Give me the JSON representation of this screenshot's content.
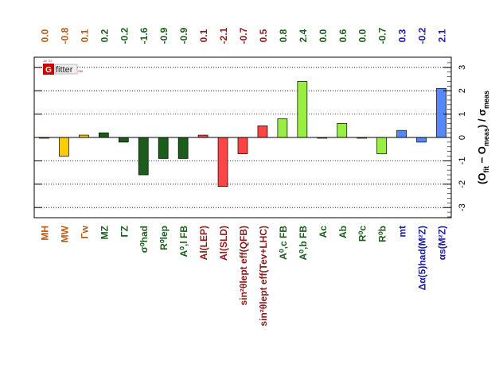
{
  "chart_data": {
    "type": "bar",
    "title": "",
    "xlabel": "",
    "ylabel": "(O_fit − O_meas) / σ_meas",
    "ylim": [
      -3.4,
      3.4
    ],
    "yticks": [
      -3,
      -2,
      -1,
      0,
      1,
      2,
      3
    ],
    "grid": true,
    "logo": {
      "letter": "G",
      "text": "fitter",
      "tag": "SM",
      "date": "Jul '22"
    },
    "categories": [
      "MH",
      "MW",
      "Γw",
      "MZ",
      "ΓZ",
      "σ⁰had",
      "R⁰lep",
      "A⁰,l FB",
      "Al(LEP)",
      "Al(SLD)",
      "sin²θlept eff(QFB)",
      "sin²θlept eff(Tev+LHC)",
      "A⁰,c FB",
      "A⁰,b FB",
      "Ac",
      "Ab",
      "R⁰c",
      "R⁰b",
      "mt",
      "Δα(5)had(M²Z)",
      "αs(M²Z)"
    ],
    "values": [
      0.0,
      -0.8,
      0.1,
      0.2,
      -0.2,
      -1.6,
      -0.9,
      -0.9,
      0.1,
      -2.1,
      -0.7,
      0.5,
      0.8,
      2.4,
      0.0,
      0.6,
      0.0,
      -0.7,
      0.3,
      -0.2,
      2.1
    ],
    "value_labels": [
      "0.0",
      "-0.8",
      "0.1",
      "0.2",
      "-0.2",
      "-1.6",
      "-0.9",
      "-0.9",
      "0.1",
      "-2.1",
      "-0.7",
      "0.5",
      "0.8",
      "2.4",
      "0.0",
      "0.6",
      "0.0",
      "-0.7",
      "0.3",
      "-0.2",
      "2.1"
    ],
    "bar_colors": [
      "#ffcc00",
      "#ffcc00",
      "#ffcc00",
      "#1b5e1b",
      "#1b5e1b",
      "#1b5e1b",
      "#1b5e1b",
      "#1b5e1b",
      "#ff4444",
      "#ff4444",
      "#ff4444",
      "#ff4444",
      "#99ee44",
      "#99ee44",
      "#99ee44",
      "#99ee44",
      "#99ee44",
      "#99ee44",
      "#5588ff",
      "#5588ff",
      "#5588ff"
    ],
    "label_colors": [
      "#b55c1a",
      "#b55c1a",
      "#b55c1a",
      "#1b5e1b",
      "#1b5e1b",
      "#1b5e1b",
      "#1b5e1b",
      "#1b5e1b",
      "#8b1a1a",
      "#8b1a1a",
      "#8b1a1a",
      "#8b1a1a",
      "#1b5e1b",
      "#1b5e1b",
      "#1b5e1b",
      "#1b5e1b",
      "#1b5e1b",
      "#1b5e1b",
      "#1a1aaa",
      "#1a1aaa",
      "#1a1aaa"
    ]
  }
}
